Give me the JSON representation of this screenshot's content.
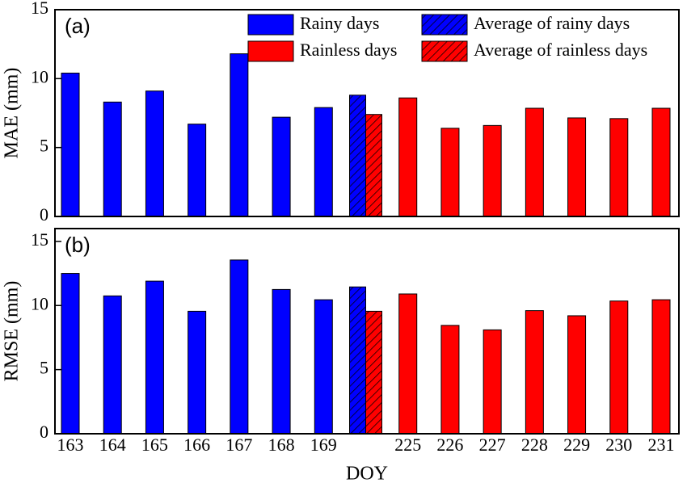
{
  "chart_data": [
    {
      "type": "bar",
      "ylabel": "MAE (mm)",
      "annotation": "(a)",
      "ylim": [
        0,
        15
      ],
      "yticks": [
        0,
        5,
        10,
        15
      ],
      "legend": "top-right",
      "series": [
        {
          "name": "Rainy days",
          "color": "#0000ff",
          "values": [
            10.4,
            8.3,
            9.1,
            6.7,
            11.8,
            7.2,
            7.9,
            null,
            null,
            null,
            null,
            null,
            null,
            null,
            null
          ]
        },
        {
          "name": "Rainless days",
          "color": "#ff0000",
          "values": [
            null,
            null,
            null,
            null,
            null,
            null,
            null,
            null,
            8.6,
            6.4,
            6.6,
            7.85,
            7.15,
            7.1,
            7.85
          ]
        },
        {
          "name": "Average of rainy days",
          "color": "#0000ff",
          "hatch": true,
          "values": [
            null,
            null,
            null,
            null,
            null,
            null,
            null,
            8.8,
            null,
            null,
            null,
            null,
            null,
            null,
            null
          ]
        },
        {
          "name": "Average of rainless days",
          "color": "#ff0000",
          "hatch": true,
          "values": [
            null,
            null,
            null,
            null,
            null,
            null,
            null,
            7.4,
            null,
            null,
            null,
            null,
            null,
            null,
            null
          ]
        }
      ]
    },
    {
      "type": "bar",
      "ylabel": "RMSE (mm)",
      "xlabel": "DOY",
      "annotation": "(b)",
      "categories": [
        "163",
        "164",
        "165",
        "166",
        "167",
        "168",
        "169",
        null,
        "225",
        "226",
        "227",
        "228",
        "229",
        "230",
        "231"
      ],
      "ylim": [
        0,
        16
      ],
      "yticks": [
        0,
        5,
        10,
        15
      ],
      "series": [
        {
          "color": "#0000ff",
          "values": [
            12.5,
            10.75,
            11.9,
            9.55,
            13.55,
            11.25,
            10.45,
            null,
            null,
            null,
            null,
            null,
            null,
            null,
            null
          ]
        },
        {
          "color": "#ff0000",
          "values": [
            null,
            null,
            null,
            null,
            null,
            null,
            null,
            null,
            10.9,
            8.45,
            8.1,
            9.6,
            9.2,
            10.35,
            10.45
          ]
        },
        {
          "color": "#0000ff",
          "hatch": true,
          "values": [
            null,
            null,
            null,
            null,
            null,
            null,
            null,
            11.45,
            null,
            null,
            null,
            null,
            null,
            null,
            null
          ]
        },
        {
          "color": "#ff0000",
          "hatch": true,
          "values": [
            null,
            null,
            null,
            null,
            null,
            null,
            null,
            9.55,
            null,
            null,
            null,
            null,
            null,
            null,
            null
          ]
        }
      ]
    }
  ]
}
